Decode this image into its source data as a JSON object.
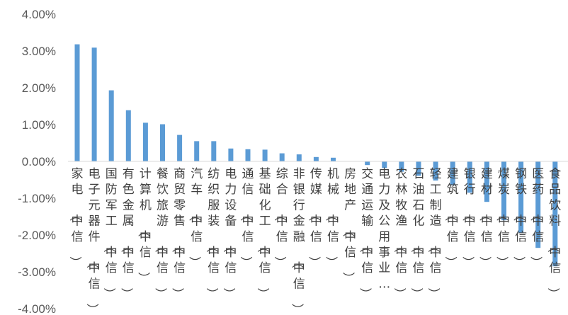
{
  "chart_data": {
    "type": "bar",
    "title": "",
    "xlabel": "",
    "ylabel": "",
    "ylim": [
      -4,
      4
    ],
    "yticks": [
      "4.00%",
      "3.00%",
      "2.00%",
      "1.00%",
      "0.00%",
      "-1.00%",
      "-2.00%",
      "-3.00%",
      "-4.00%"
    ],
    "categories": [
      "家电（中信）",
      "电子元器件（中信）",
      "国防军工（中信）",
      "有色金属（中信）",
      "计算机（中信）",
      "餐饮旅游（中信）",
      "商贸零售（中信）",
      "汽车（中信）",
      "纺织服装（中信）",
      "电力设备（中信）",
      "通信（中信）",
      "基础化工（中信）",
      "综合（中信）",
      "非银行金融（中信）",
      "传媒（中信）",
      "机械（中信）",
      "房地产（中信）",
      "交通运输（中信）",
      "电力及公用事业…",
      "农林牧渔（中信）",
      "石油石化（中信）",
      "轻工制造（中信）",
      "建筑（中信）",
      "银行（中信）",
      "建材（中信）",
      "煤炭（中信）",
      "钢铁（中信）",
      "医药（中信）",
      "食品饮料（中信）"
    ],
    "values": [
      3.18,
      3.09,
      1.93,
      1.39,
      1.05,
      1.01,
      0.72,
      0.55,
      0.55,
      0.35,
      0.33,
      0.32,
      0.22,
      0.19,
      0.12,
      0.1,
      0.0,
      -0.1,
      -0.18,
      -0.28,
      -0.39,
      -0.52,
      -0.65,
      -0.85,
      -1.1,
      -1.6,
      -1.95,
      -2.35,
      -2.85
    ],
    "bar_color": "#5b9bd5",
    "grid": false,
    "legend": "none"
  }
}
